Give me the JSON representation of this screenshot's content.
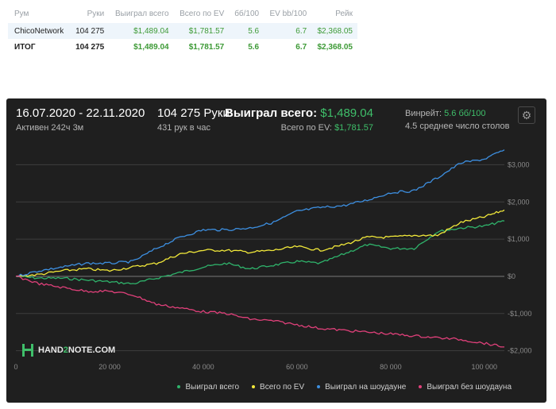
{
  "table": {
    "headers": [
      "Рум",
      "Руки",
      "Выиграл всего",
      "Всего по EV",
      "бб/100",
      "EV bb/100",
      "Рейк"
    ],
    "rows": [
      {
        "room": "ChicoNetwork",
        "hands": "104 275",
        "won": "$1,489.04",
        "ev": "$1,781.57",
        "bb100": "5.6",
        "evbb100": "6.7",
        "rake": "$2,368.05"
      }
    ],
    "total": {
      "room": "ИТОГ",
      "hands": "104 275",
      "won": "$1,489.04",
      "ev": "$1,781.57",
      "bb100": "5.6",
      "evbb100": "6.7",
      "rake": "$2,368.05"
    }
  },
  "panel": {
    "date_range": "16.07.2020 - 22.11.2020",
    "active": "Активен 242ч 3м",
    "hands_label": "104 275 Руки",
    "hands_per_hour": "431 рук в час",
    "won_label": "Выиграл всего:",
    "won_value": "$1,489.04",
    "ev_label": "Всего по EV:",
    "ev_value": "$1,781.57",
    "winrate_label": "Винрейт:",
    "winrate_value": "5.6 бб/100",
    "avg_tables": "4.5 среднее число столов",
    "logo_prefix": "HAND",
    "logo_accent": "2",
    "logo_suffix": "NOTE.COM",
    "gear_icon": "gear-icon"
  },
  "colors": {
    "won": "#2fb36b",
    "ev": "#f2e93a",
    "showdown": "#3d8fe0",
    "non_showdown": "#e0407a"
  },
  "chart_data": {
    "type": "line",
    "title": "",
    "xlabel": "",
    "ylabel": "",
    "xlim": [
      0,
      104275
    ],
    "ylim": [
      -2200,
      3500
    ],
    "x_ticks": [
      0,
      20000,
      40000,
      60000,
      80000,
      100000
    ],
    "x_tick_labels": [
      "0",
      "20 000",
      "40 000",
      "60 000",
      "80 000",
      "100 000"
    ],
    "y_ticks": [
      3000,
      2000,
      1000,
      0,
      -1000,
      -2000
    ],
    "y_tick_labels": [
      "$3,000",
      "$2,000",
      "$1,000",
      "$0",
      "-$1,000",
      "-$2,000"
    ],
    "grid": true,
    "legend_position": "bottom-right",
    "series": [
      {
        "name": "Выиграл всего",
        "color_key": "won",
        "x": [
          0,
          5000,
          10000,
          15000,
          20000,
          25000,
          30000,
          35000,
          40000,
          45000,
          50000,
          55000,
          60000,
          65000,
          70000,
          75000,
          80000,
          85000,
          90000,
          95000,
          100000,
          104275
        ],
        "y": [
          0,
          -50,
          -50,
          -100,
          -150,
          -200,
          -50,
          100,
          250,
          350,
          200,
          300,
          400,
          350,
          600,
          850,
          750,
          750,
          1200,
          1300,
          1350,
          1489
        ]
      },
      {
        "name": "Всего по EV",
        "color_key": "ev",
        "x": [
          0,
          5000,
          10000,
          15000,
          20000,
          25000,
          30000,
          35000,
          40000,
          45000,
          50000,
          55000,
          60000,
          65000,
          70000,
          75000,
          80000,
          85000,
          90000,
          95000,
          100000,
          104275
        ],
        "y": [
          0,
          50,
          150,
          200,
          150,
          250,
          350,
          600,
          700,
          700,
          650,
          700,
          800,
          700,
          850,
          1050,
          1050,
          1100,
          1100,
          1450,
          1600,
          1782
        ]
      },
      {
        "name": "Выиграл на шоудауне",
        "color_key": "showdown",
        "x": [
          0,
          5000,
          10000,
          15000,
          20000,
          25000,
          30000,
          35000,
          40000,
          45000,
          50000,
          55000,
          60000,
          65000,
          70000,
          75000,
          80000,
          85000,
          90000,
          95000,
          100000,
          104275
        ],
        "y": [
          0,
          150,
          250,
          350,
          350,
          400,
          750,
          1050,
          1250,
          1250,
          1300,
          1450,
          1750,
          1850,
          1900,
          2050,
          2250,
          2300,
          2650,
          3050,
          3150,
          3400
        ]
      },
      {
        "name": "Выиграл без шоудауна",
        "color_key": "non_showdown",
        "x": [
          0,
          5000,
          10000,
          15000,
          20000,
          25000,
          30000,
          35000,
          40000,
          45000,
          50000,
          55000,
          60000,
          65000,
          70000,
          75000,
          80000,
          85000,
          90000,
          95000,
          100000,
          104275
        ],
        "y": [
          0,
          -200,
          -300,
          -400,
          -400,
          -500,
          -750,
          -850,
          -950,
          -1000,
          -1150,
          -1200,
          -1300,
          -1400,
          -1450,
          -1500,
          -1550,
          -1600,
          -1650,
          -1700,
          -1800,
          -1900
        ]
      }
    ]
  }
}
